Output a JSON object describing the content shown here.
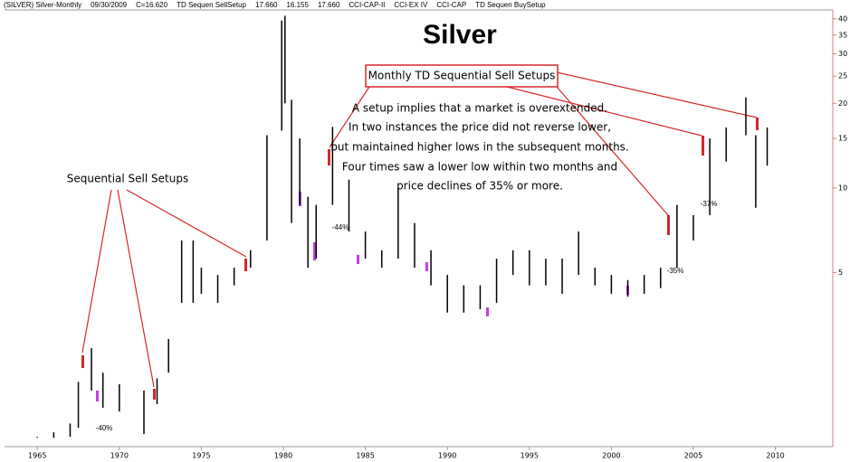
{
  "chart_data": {
    "type": "ohlc",
    "title": "Silver",
    "header": [
      {
        "text": "(SILVER) Silver-Monthly",
        "color": "#000000"
      },
      {
        "text": "09/30/2009",
        "color": "#000000"
      },
      {
        "text": "C=16.620",
        "color": "#2ca02c"
      },
      {
        "text": "TD Sequen SellSetup",
        "color": "#000000"
      },
      {
        "text": "17.660",
        "color": "#d62728"
      },
      {
        "text": "16.155",
        "color": "#d62728"
      },
      {
        "text": "17.660",
        "color": "#000000"
      },
      {
        "text": "CCI-CAP-II",
        "color": "#000000"
      },
      {
        "text": "CCI-EX IV",
        "color": "#000000"
      },
      {
        "text": "CCI-CAP",
        "color": "#000000"
      },
      {
        "text": "TD Sequen BuySetup",
        "color": "#000000"
      }
    ],
    "annotations": [
      "Sequential Sell Setups",
      "Monthly TD Sequential Sell Setups",
      "A setup implies that a market is overextended.",
      "In two instances the price did not reverse lower,",
      "but maintained higher lows in the subsequent months.",
      "Four times saw a lower low within two months and",
      "price declines of 35% or more.",
      "-40%",
      "-44%",
      "-35%",
      "-37%"
    ],
    "log_y": true,
    "color": "#000000",
    "annotation_color": "#d62728",
    "xlim": [
      1963,
      2013.5
    ],
    "ylim": [
      1.2,
      43
    ],
    "xticks": [
      1965,
      1970,
      1975,
      1980,
      1985,
      1990,
      1995,
      2000,
      2005,
      2010
    ],
    "yticks": [
      5,
      10,
      15,
      20,
      25,
      30,
      35,
      40
    ],
    "series": [
      {
        "name": "Silver",
        "x": [
          1965,
          1966,
          1967,
          1967.5,
          1968.3,
          1969,
          1970,
          1971.5,
          1972.3,
          1973,
          1973.8,
          1974.5,
          1975,
          1976,
          1977,
          1978,
          1979,
          1979.9,
          1980.1,
          1980.5,
          1981,
          1981.5,
          1982,
          1983,
          1984,
          1985,
          1986,
          1987,
          1988,
          1989,
          1990,
          1991,
          1992,
          1993,
          1994,
          1995,
          1996,
          1997,
          1998,
          1999,
          2000,
          2001,
          2002,
          2003,
          2004,
          2005,
          2006,
          2007,
          2008.2,
          2008.8,
          2009.5
        ],
        "high": [
          1.3,
          1.35,
          1.45,
          2.04,
          2.69,
          2.2,
          2.0,
          1.9,
          2.1,
          2.9,
          6.5,
          6.5,
          5.2,
          4.9,
          5.2,
          6.0,
          15.4,
          39.4,
          41,
          20.6,
          15,
          9.3,
          8.7,
          16.5,
          10.7,
          7,
          6,
          10,
          7.5,
          6,
          4.9,
          4.5,
          4.5,
          5.6,
          6,
          6,
          5.6,
          5.6,
          7,
          5.2,
          4.9,
          4.7,
          4.9,
          5.2,
          8.7,
          8,
          15,
          16.4,
          21,
          15.4,
          16.4
        ],
        "low": [
          1.29,
          1.29,
          1.3,
          1.4,
          1.9,
          1.65,
          1.6,
          1.33,
          1.7,
          2.2,
          3.9,
          3.9,
          4.2,
          3.9,
          4.5,
          5.2,
          6.5,
          16,
          20,
          7.5,
          8.7,
          5.2,
          5.6,
          8.7,
          7,
          5.6,
          5.2,
          5.6,
          5.2,
          4.5,
          3.6,
          3.6,
          3.7,
          3.9,
          4.9,
          4.5,
          4.5,
          4.2,
          4.9,
          4.5,
          4.2,
          4.1,
          4.2,
          4.4,
          5.2,
          6.5,
          8,
          12.4,
          15.4,
          8.5,
          12
        ]
      }
    ]
  }
}
